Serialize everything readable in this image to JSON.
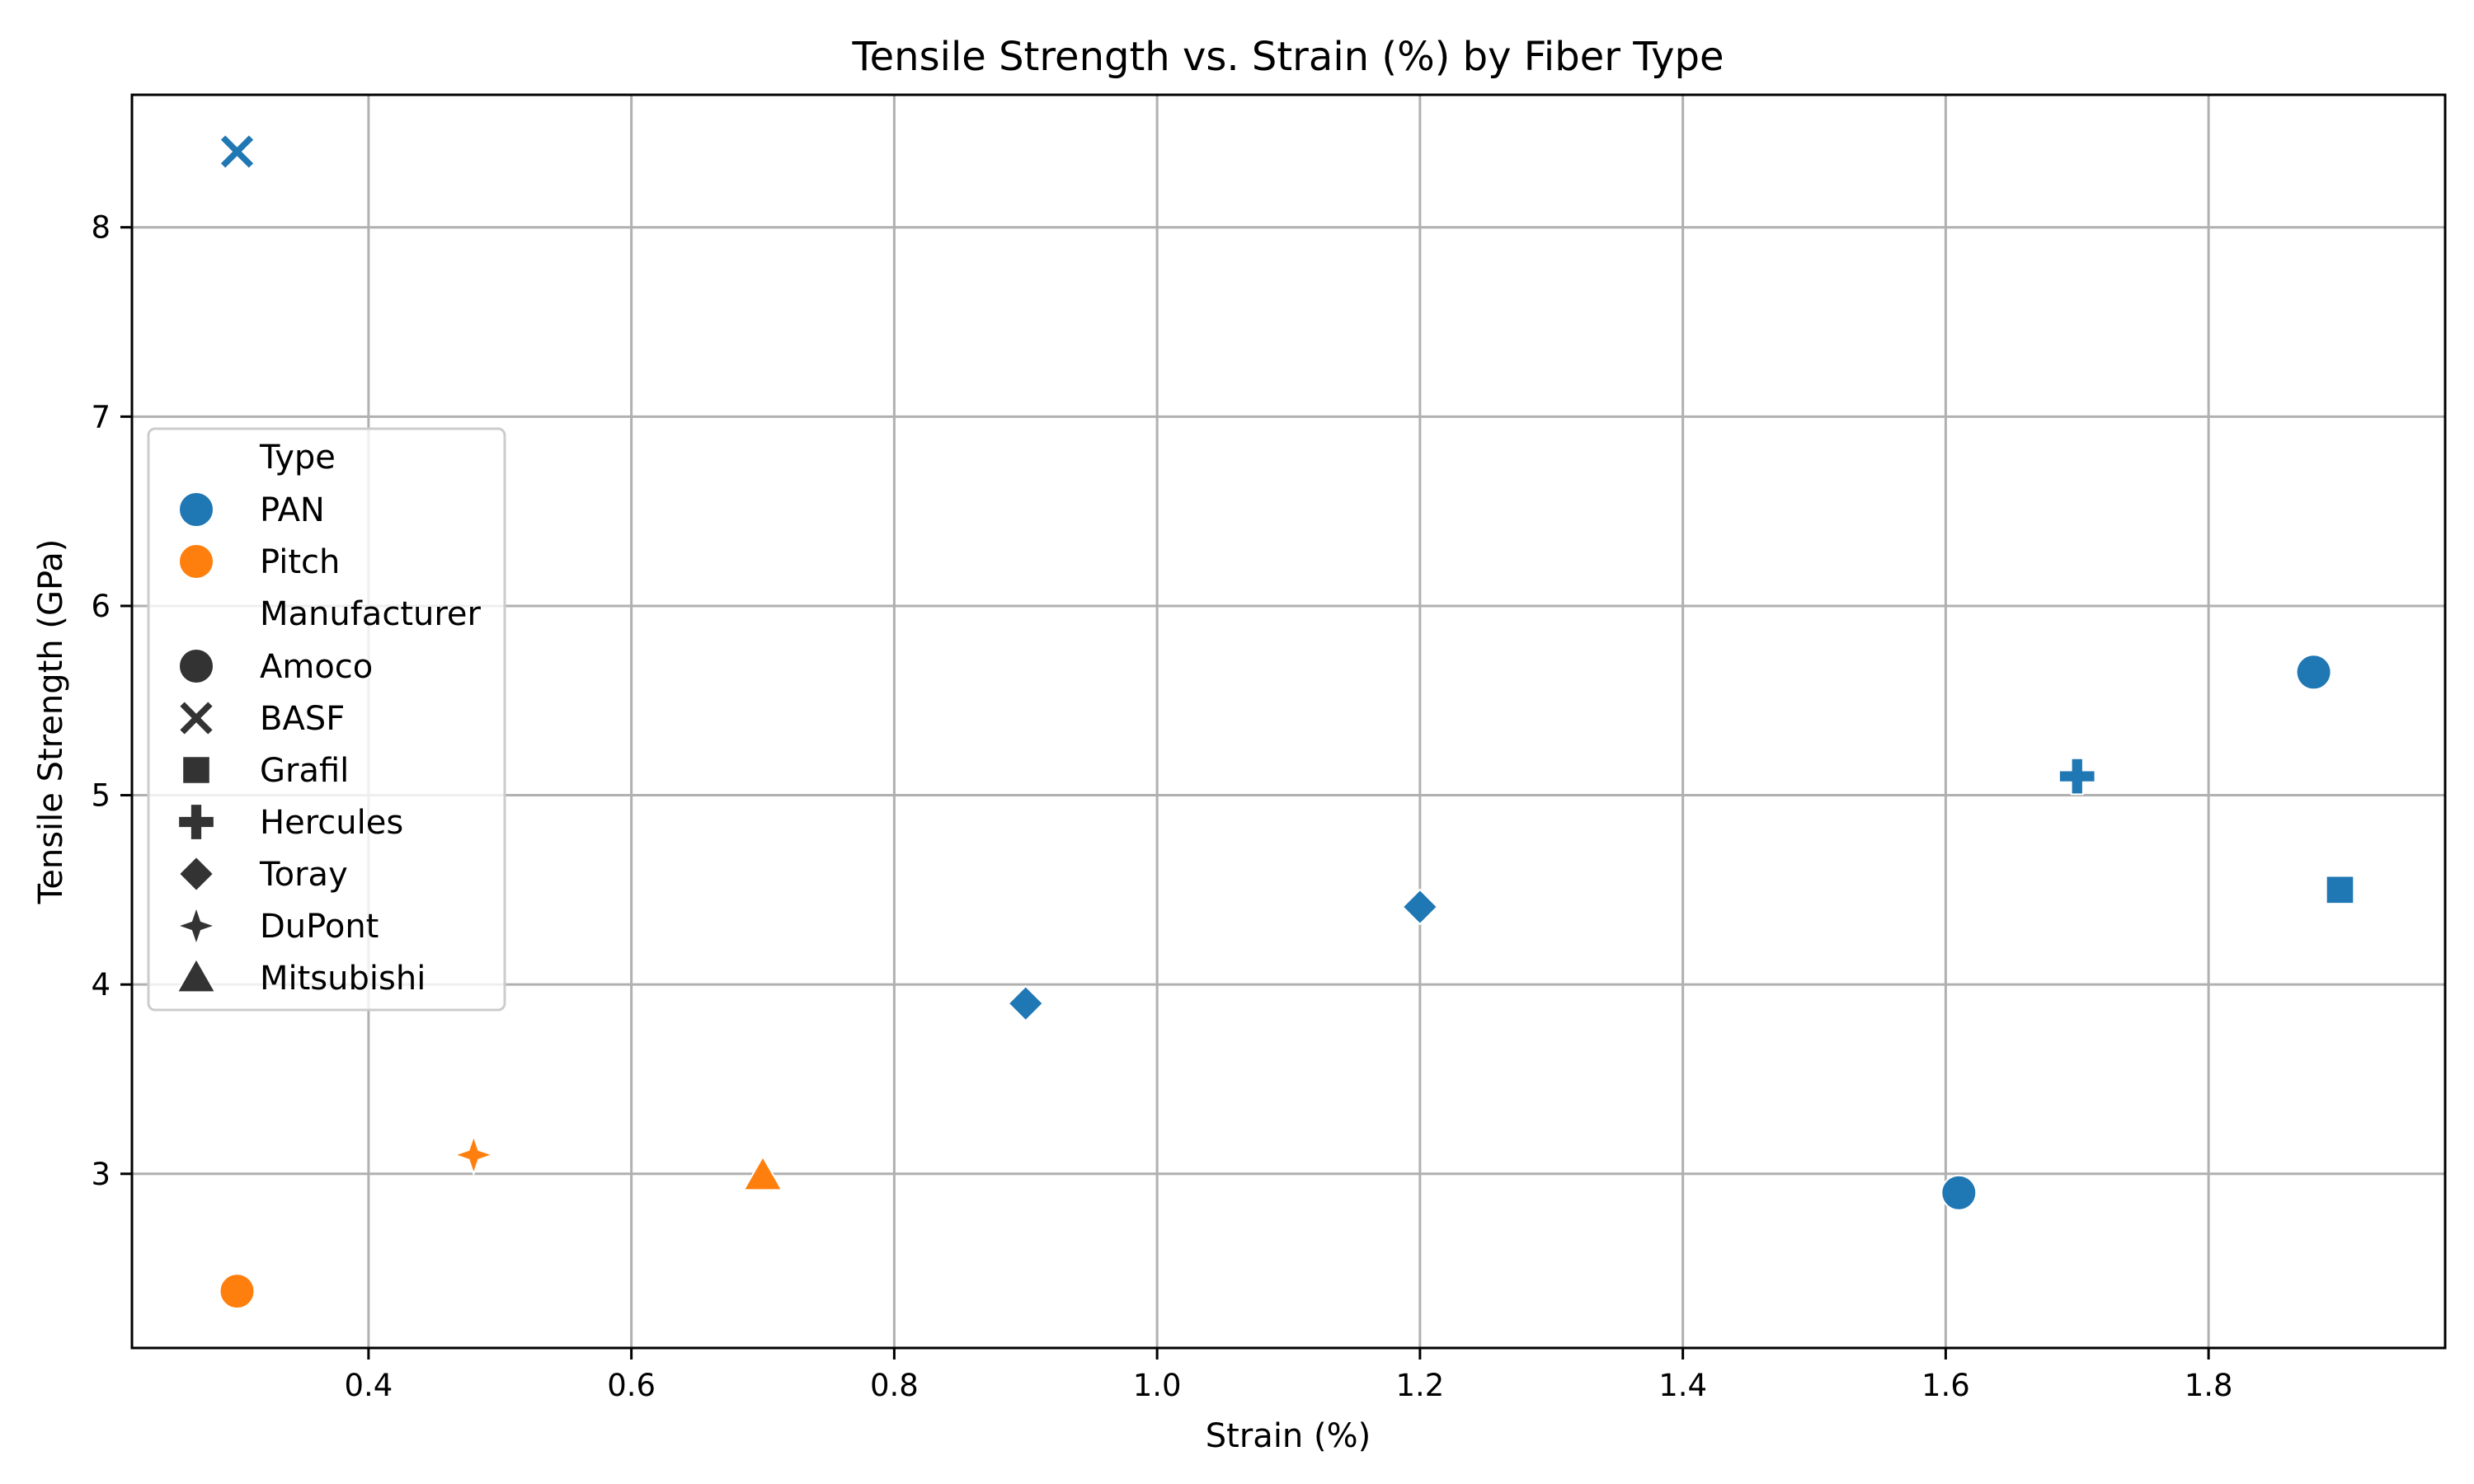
{
  "chart_data": {
    "type": "scatter",
    "title": "Tensile Strength vs. Strain (%) by Fiber Type",
    "xlabel": "Strain (%)",
    "ylabel": "Tensile Strength (GPa)",
    "xlim": [
      0.22,
      1.98
    ],
    "ylim": [
      2.08,
      8.7
    ],
    "xticks": [
      0.4,
      0.6,
      0.8,
      1.0,
      1.2,
      1.4,
      1.6,
      1.8
    ],
    "xtick_labels": [
      "0.4",
      "0.6",
      "0.8",
      "1.0",
      "1.2",
      "1.4",
      "1.6",
      "1.8"
    ],
    "yticks": [
      3,
      4,
      5,
      6,
      7,
      8
    ],
    "ytick_labels": [
      "3",
      "4",
      "5",
      "6",
      "7",
      "8"
    ],
    "grid": true,
    "legend_placement": "center-left",
    "colors": {
      "PAN": "#1f77b4",
      "Pitch": "#ff7f0e",
      "neutral": "#333333"
    },
    "legend": {
      "hue_title": "Type",
      "hue_entries": [
        "PAN",
        "Pitch"
      ],
      "style_title": "Manufacturer",
      "style_entries": [
        {
          "label": "Amoco",
          "marker": "circle"
        },
        {
          "label": "BASF",
          "marker": "x"
        },
        {
          "label": "Grafil",
          "marker": "square"
        },
        {
          "label": "Hercules",
          "marker": "plus"
        },
        {
          "label": "Toray",
          "marker": "diamond"
        },
        {
          "label": "DuPont",
          "marker": "star4"
        },
        {
          "label": "Mitsubishi",
          "marker": "triangle"
        }
      ]
    },
    "points": [
      {
        "x": 0.3,
        "y": 8.4,
        "type": "PAN",
        "manufacturer": "BASF",
        "marker": "x"
      },
      {
        "x": 0.3,
        "y": 2.38,
        "type": "Pitch",
        "manufacturer": "Amoco",
        "marker": "circle"
      },
      {
        "x": 0.48,
        "y": 3.1,
        "type": "Pitch",
        "manufacturer": "DuPont",
        "marker": "star4"
      },
      {
        "x": 0.7,
        "y": 2.99,
        "type": "Pitch",
        "manufacturer": "Mitsubishi",
        "marker": "triangle"
      },
      {
        "x": 0.9,
        "y": 3.9,
        "type": "PAN",
        "manufacturer": "Toray",
        "marker": "diamond"
      },
      {
        "x": 1.2,
        "y": 4.41,
        "type": "PAN",
        "manufacturer": "Toray",
        "marker": "diamond"
      },
      {
        "x": 1.61,
        "y": 2.9,
        "type": "PAN",
        "manufacturer": "Amoco",
        "marker": "circle"
      },
      {
        "x": 1.7,
        "y": 5.1,
        "type": "PAN",
        "manufacturer": "Hercules",
        "marker": "plus"
      },
      {
        "x": 1.88,
        "y": 5.65,
        "type": "PAN",
        "manufacturer": "Amoco",
        "marker": "circle"
      },
      {
        "x": 1.9,
        "y": 4.5,
        "type": "PAN",
        "manufacturer": "Grafil",
        "marker": "square"
      }
    ]
  }
}
